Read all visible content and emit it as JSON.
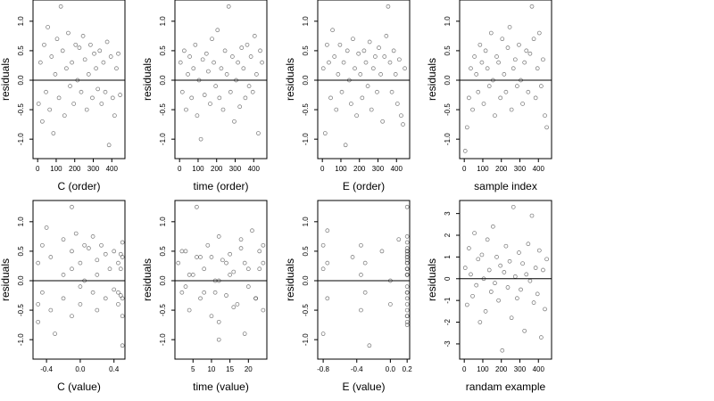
{
  "chart_data": [
    {
      "type": "scatter",
      "x_label": "C (order)",
      "y_label": "residuals",
      "color": "#444444",
      "hline": 0,
      "x": [
        5,
        15,
        25,
        35,
        45,
        55,
        65,
        75,
        85,
        95,
        105,
        115,
        125,
        135,
        145,
        155,
        165,
        175,
        185,
        195,
        205,
        215,
        225,
        235,
        245,
        255,
        265,
        275,
        285,
        295,
        305,
        315,
        325,
        335,
        345,
        355,
        365,
        375,
        385,
        395,
        405,
        415,
        425,
        435,
        445
      ],
      "values": [
        -0.4,
        0.3,
        -0.7,
        0.6,
        -0.2,
        0.9,
        -0.5,
        0.4,
        -0.9,
        0.1,
        0.7,
        -0.3,
        1.25,
        0.5,
        -0.6,
        0.2,
        0.8,
        -0.1,
        0.3,
        -0.4,
        0.6,
        0.0,
        0.55,
        -0.2,
        0.75,
        0.35,
        -0.5,
        0.1,
        0.6,
        -0.3,
        0.45,
        0.2,
        -0.15,
        0.5,
        -0.4,
        0.3,
        -0.2,
        0.65,
        -1.1,
        0.4,
        -0.3,
        -0.6,
        0.2,
        0.45,
        -0.25
      ],
      "xlim": [
        -25,
        471
      ],
      "ylim": [
        -1.33,
        1.36
      ],
      "xticks": [
        0,
        100,
        200,
        300,
        400
      ],
      "yticks": [
        {
          "value": -1,
          "label": "-1.0"
        },
        {
          "value": -0.5,
          "label": "-0.5"
        },
        {
          "value": 0,
          "label": "0.0"
        },
        {
          "value": 0.5,
          "label": "0.5"
        },
        {
          "value": 1,
          "label": "1.0"
        }
      ]
    },
    {
      "type": "scatter",
      "x_label": "time (order)",
      "y_label": "residuals",
      "color": "#444444",
      "hline": 0,
      "x": [
        5,
        15,
        25,
        35,
        45,
        55,
        65,
        75,
        85,
        95,
        105,
        115,
        125,
        135,
        145,
        155,
        165,
        175,
        185,
        195,
        205,
        215,
        225,
        235,
        245,
        255,
        265,
        275,
        285,
        295,
        305,
        315,
        325,
        335,
        345,
        355,
        365,
        375,
        385,
        395,
        405,
        415,
        425,
        435,
        445
      ],
      "values": [
        0.3,
        -0.2,
        0.5,
        -0.5,
        0.1,
        0.4,
        -0.3,
        0.2,
        0.6,
        -0.6,
        0.0,
        -1.0,
        0.35,
        -0.25,
        0.45,
        0.15,
        -0.4,
        0.7,
        0.3,
        -0.1,
        0.85,
        -0.3,
        0.2,
        -0.5,
        0.5,
        0.1,
        1.25,
        -0.2,
        0.4,
        -0.7,
        0.0,
        0.3,
        -0.45,
        0.55,
        0.2,
        -0.3,
        0.6,
        -0.1,
        0.4,
        -0.2,
        0.75,
        0.1,
        -0.9,
        0.5,
        0.3
      ],
      "xlim": [
        -25,
        471
      ],
      "ylim": [
        -1.33,
        1.36
      ],
      "xticks": [
        0,
        100,
        200,
        300,
        400
      ],
      "yticks": [
        {
          "value": -1,
          "label": "-1.0"
        },
        {
          "value": -0.5,
          "label": "-0.5"
        },
        {
          "value": 0,
          "label": "0.0"
        },
        {
          "value": 0.5,
          "label": "0.5"
        },
        {
          "value": 1,
          "label": "1.0"
        }
      ]
    },
    {
      "type": "scatter",
      "x_label": "E (order)",
      "y_label": "residuals",
      "color": "#444444",
      "hline": 0,
      "x": [
        5,
        15,
        25,
        35,
        45,
        55,
        65,
        75,
        85,
        95,
        105,
        115,
        125,
        135,
        145,
        155,
        165,
        175,
        185,
        195,
        205,
        215,
        225,
        235,
        245,
        255,
        265,
        275,
        285,
        295,
        305,
        315,
        325,
        335,
        345,
        355,
        365,
        375,
        385,
        395,
        405,
        415,
        425,
        435,
        445
      ],
      "values": [
        0.2,
        -0.9,
        0.6,
        0.3,
        -0.3,
        0.85,
        0.4,
        -0.5,
        0.1,
        0.6,
        -0.2,
        0.3,
        -1.1,
        0.5,
        0.0,
        -0.4,
        0.7,
        0.2,
        -0.6,
        0.45,
        0.1,
        -0.3,
        0.5,
        0.3,
        -0.1,
        0.65,
        -0.5,
        0.2,
        0.4,
        -0.2,
        0.55,
        0.1,
        -0.7,
        0.4,
        0.75,
        1.25,
        0.3,
        -0.2,
        0.5,
        0.1,
        -0.4,
        0.35,
        -0.6,
        -0.75,
        0.2
      ],
      "xlim": [
        -25,
        471
      ],
      "ylim": [
        -1.33,
        1.36
      ],
      "xticks": [
        0,
        100,
        200,
        300,
        400
      ],
      "yticks": [
        {
          "value": -1,
          "label": "-1.0"
        },
        {
          "value": -0.5,
          "label": "-0.5"
        },
        {
          "value": 0,
          "label": "0.0"
        },
        {
          "value": 0.5,
          "label": "0.5"
        },
        {
          "value": 1,
          "label": "1.0"
        }
      ]
    },
    {
      "type": "scatter",
      "x_label": "sample index",
      "y_label": "residuals",
      "color": "#444444",
      "hline": 0,
      "x": [
        5,
        15,
        25,
        35,
        45,
        55,
        65,
        75,
        85,
        95,
        105,
        115,
        125,
        135,
        145,
        155,
        165,
        175,
        185,
        195,
        205,
        215,
        225,
        235,
        245,
        255,
        265,
        275,
        285,
        295,
        305,
        315,
        325,
        335,
        345,
        355,
        365,
        375,
        385,
        395,
        405,
        415,
        425,
        435,
        445
      ],
      "values": [
        -1.2,
        -0.8,
        -0.3,
        0.2,
        -0.5,
        0.4,
        0.1,
        -0.2,
        0.6,
        0.3,
        -0.4,
        0.5,
        0.2,
        -0.1,
        0.8,
        0.0,
        -0.6,
        0.4,
        0.3,
        -0.3,
        0.7,
        0.1,
        -0.2,
        0.55,
        0.9,
        -0.5,
        0.2,
        0.35,
        -0.1,
        0.6,
        0.0,
        -0.4,
        0.3,
        0.5,
        -0.2,
        0.45,
        1.25,
        0.7,
        -0.3,
        0.2,
        0.8,
        -0.1,
        0.35,
        -0.6,
        -0.8
      ],
      "xlim": [
        -25,
        471
      ],
      "ylim": [
        -1.33,
        1.36
      ],
      "xticks": [
        0,
        100,
        200,
        300,
        400
      ],
      "yticks": [
        {
          "value": -1,
          "label": "-1.0"
        },
        {
          "value": -0.5,
          "label": "-0.5"
        },
        {
          "value": 0,
          "label": "0.0"
        },
        {
          "value": 0.5,
          "label": "0.5"
        },
        {
          "value": 1,
          "label": "1.0"
        }
      ]
    },
    {
      "type": "scatter",
      "x_label": "C (value)",
      "y_label": "residuals",
      "color": "#444444",
      "hline": 0,
      "x": [
        -0.5,
        -0.5,
        -0.5,
        -0.45,
        -0.45,
        -0.4,
        -0.35,
        -0.35,
        -0.3,
        -0.2,
        -0.2,
        -0.2,
        -0.1,
        -0.1,
        -0.1,
        -0.1,
        -0.05,
        0,
        0,
        0,
        0.05,
        0.05,
        0.1,
        0.15,
        0.15,
        0.2,
        0.2,
        0.2,
        0.25,
        0.3,
        0.3,
        0.35,
        0.4,
        0.4,
        0.45,
        0.45,
        0.45,
        0.5,
        0.5,
        0.5,
        0.5,
        0.5,
        0.48,
        0.48,
        0.48
      ],
      "values": [
        -0.4,
        0.3,
        -0.7,
        0.6,
        -0.2,
        0.9,
        -0.5,
        0.4,
        -0.9,
        0.1,
        0.7,
        -0.3,
        1.25,
        0.5,
        -0.6,
        0.2,
        0.8,
        -0.1,
        0.3,
        -0.4,
        0.6,
        0.0,
        0.55,
        -0.2,
        0.75,
        0.35,
        -0.5,
        0.1,
        0.6,
        -0.3,
        0.45,
        0.2,
        -0.15,
        0.5,
        -0.4,
        0.3,
        -0.2,
        0.65,
        -1.1,
        0.4,
        -0.3,
        -0.6,
        0.2,
        0.45,
        -0.25
      ],
      "xlim": [
        -0.56,
        0.53
      ],
      "ylim": [
        -1.33,
        1.36
      ],
      "xticks": [
        -0.4,
        {
          "value": 0,
          "label": "0.0"
        },
        0.4
      ],
      "yticks": [
        {
          "value": -1,
          "label": "-1.0"
        },
        {
          "value": -0.5,
          "label": "-0.5"
        },
        {
          "value": 0,
          "label": "0.0"
        },
        {
          "value": 0.5,
          "label": "0.5"
        },
        {
          "value": 1,
          "label": "1.0"
        }
      ]
    },
    {
      "type": "scatter",
      "x_label": "time (value)",
      "y_label": "residuals",
      "color": "#444444",
      "hline": 0,
      "x": [
        1,
        2,
        3,
        4,
        5,
        6,
        7,
        8,
        9,
        10,
        11,
        12,
        13,
        14,
        15,
        16,
        17,
        18,
        19,
        20,
        21,
        22,
        23,
        24,
        2,
        4,
        6,
        8,
        10,
        12,
        12,
        14,
        16,
        18,
        20,
        22,
        24,
        3,
        7,
        11,
        12,
        15,
        19,
        23,
        24
      ],
      "values": [
        0.3,
        -0.2,
        0.5,
        -0.5,
        0.1,
        0.4,
        -0.3,
        0.2,
        0.6,
        -0.6,
        0.0,
        -1.0,
        0.35,
        -0.25,
        0.45,
        0.15,
        -0.4,
        0.7,
        0.3,
        -0.1,
        0.85,
        -0.3,
        0.2,
        -0.5,
        0.5,
        0.1,
        1.25,
        -0.2,
        0.4,
        -0.7,
        0.0,
        0.3,
        -0.45,
        0.55,
        0.2,
        -0.3,
        0.6,
        -0.1,
        0.4,
        -0.2,
        0.75,
        0.1,
        -0.9,
        0.5,
        0.3
      ],
      "xlim": [
        0.1,
        25
      ],
      "ylim": [
        -1.33,
        1.36
      ],
      "xticks": [
        5,
        10,
        15,
        20
      ],
      "yticks": [
        {
          "value": -1,
          "label": "-1.0"
        },
        {
          "value": -0.5,
          "label": "-0.5"
        },
        {
          "value": 0,
          "label": "0.0"
        },
        {
          "value": 0.5,
          "label": "0.5"
        },
        {
          "value": 1,
          "label": "1.0"
        }
      ]
    },
    {
      "type": "scatter",
      "x_label": "E (value)",
      "y_label": "residuals",
      "color": "#444444",
      "hline": 0,
      "x": [
        -0.8,
        -0.8,
        -0.8,
        -0.75,
        -0.75,
        -0.75,
        -0.45,
        -0.35,
        -0.35,
        -0.35,
        -0.3,
        -0.3,
        -0.25,
        -0.1,
        0.0,
        0.0,
        0.1,
        0.2,
        0.2,
        0.2,
        0.2,
        0.2,
        0.2,
        0.2,
        0.2,
        0.2,
        0.2,
        0.2,
        0.2,
        0.2,
        0.2,
        0.2,
        0.2,
        0.2,
        0.2,
        0.2,
        0.2,
        0.2,
        0.2,
        0.2,
        0.2,
        0.2,
        0.2,
        0.2,
        0.2
      ],
      "values": [
        0.2,
        -0.9,
        0.6,
        0.3,
        -0.3,
        0.85,
        0.4,
        -0.5,
        0.1,
        0.6,
        -0.2,
        0.3,
        -1.1,
        0.5,
        0.0,
        -0.4,
        0.7,
        0.2,
        -0.6,
        0.45,
        0.1,
        -0.3,
        0.5,
        0.3,
        -0.1,
        0.65,
        -0.5,
        0.2,
        0.4,
        -0.2,
        0.55,
        0.1,
        -0.7,
        0.4,
        0.75,
        1.25,
        0.3,
        -0.2,
        0.5,
        0.1,
        -0.4,
        0.35,
        -0.6,
        -0.75,
        0.2
      ],
      "xlim": [
        -0.865,
        0.23
      ],
      "ylim": [
        -1.33,
        1.36
      ],
      "xticks": [
        -0.8,
        -0.4,
        {
          "value": 0,
          "label": "0.0"
        },
        0.2
      ],
      "yticks": [
        {
          "value": -1,
          "label": "-1.0"
        },
        {
          "value": -0.5,
          "label": "-0.5"
        },
        {
          "value": 0,
          "label": "0.0"
        },
        {
          "value": 0.5,
          "label": "0.5"
        },
        {
          "value": 1,
          "label": "1.0"
        }
      ]
    },
    {
      "type": "scatter",
      "x_label": "randam example",
      "y_label": "residuals",
      "color": "#444444",
      "hline": 0,
      "x": [
        5,
        15,
        25,
        35,
        45,
        55,
        65,
        75,
        85,
        95,
        105,
        115,
        125,
        135,
        145,
        155,
        165,
        175,
        185,
        195,
        205,
        215,
        225,
        235,
        245,
        255,
        265,
        275,
        285,
        295,
        305,
        315,
        325,
        335,
        345,
        355,
        365,
        375,
        385,
        395,
        405,
        415,
        425,
        435,
        445
      ],
      "values": [
        0.5,
        -1.2,
        1.4,
        0.2,
        -0.8,
        2.1,
        -0.3,
        0.9,
        -2.0,
        1.1,
        0.0,
        -1.5,
        1.8,
        0.4,
        -0.6,
        2.4,
        -0.2,
        1.0,
        -1.0,
        0.6,
        -3.3,
        0.3,
        1.5,
        -0.4,
        0.8,
        -1.8,
        3.3,
        0.1,
        -0.9,
        1.2,
        -0.5,
        0.7,
        -2.4,
        0.2,
        1.6,
        -0.1,
        2.9,
        -1.1,
        0.5,
        -0.7,
        1.3,
        -2.7,
        0.4,
        -1.4,
        0.9
      ],
      "xlim": [
        -25,
        471
      ],
      "ylim": [
        -3.7,
        3.6
      ],
      "xticks": [
        0,
        100,
        200,
        300,
        400
      ],
      "yticks": [
        -3,
        -2,
        -1,
        0,
        1,
        2,
        3
      ]
    }
  ]
}
